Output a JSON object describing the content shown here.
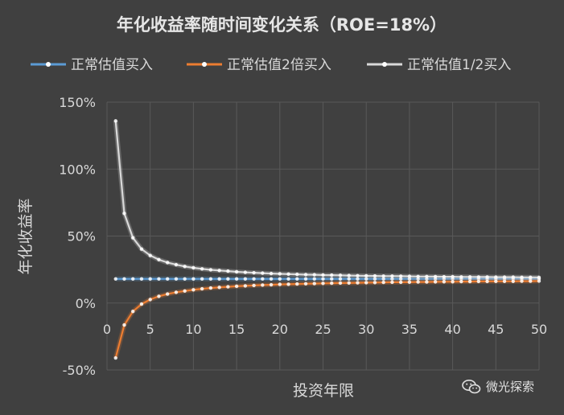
{
  "chart_data": {
    "type": "line",
    "title": "年化收益率随时间变化关系（ROE=18%）",
    "xlabel": "投资年限",
    "ylabel": "年化收益率",
    "xlim": [
      0,
      50
    ],
    "ylim": [
      -50,
      150
    ],
    "x_ticks": [
      0,
      5,
      10,
      15,
      20,
      25,
      30,
      35,
      40,
      45,
      50
    ],
    "y_ticks": [
      -50,
      0,
      50,
      100,
      150
    ],
    "y_tick_labels": [
      "-50%",
      "0%",
      "50%",
      "100%",
      "150%"
    ],
    "grid": true,
    "legend_position": "top",
    "x": [
      1,
      2,
      3,
      4,
      5,
      6,
      7,
      8,
      9,
      10,
      11,
      12,
      13,
      14,
      15,
      16,
      17,
      18,
      19,
      20,
      21,
      22,
      23,
      24,
      25,
      26,
      27,
      28,
      29,
      30,
      31,
      32,
      33,
      34,
      35,
      36,
      37,
      38,
      39,
      40,
      41,
      42,
      43,
      44,
      45,
      46,
      47,
      48,
      49,
      50
    ],
    "series": [
      {
        "name": "正常估值买入",
        "color": "#5b9bd5",
        "values": [
          18,
          18,
          18,
          18,
          18,
          18,
          18,
          18,
          18,
          18,
          18,
          18,
          18,
          18,
          18,
          18,
          18,
          18,
          18,
          18,
          18,
          18,
          18,
          18,
          18,
          18,
          18,
          18,
          18,
          18,
          18,
          18,
          18,
          18,
          18,
          18,
          18,
          18,
          18,
          18,
          18,
          18,
          18,
          18,
          18,
          18,
          18,
          18,
          18,
          18
        ]
      },
      {
        "name": "正常估值2倍买入",
        "color": "#ed7d31",
        "values": [
          -41,
          -16.4,
          -6.3,
          -0.8,
          2.6,
          5.0,
          6.7,
          8.0,
          9.0,
          9.9,
          10.6,
          11.2,
          11.7,
          12.1,
          12.5,
          12.8,
          13.1,
          13.4,
          13.6,
          13.9,
          14.0,
          14.2,
          14.4,
          14.5,
          14.7,
          14.8,
          14.9,
          15.0,
          15.1,
          15.2,
          15.3,
          15.4,
          15.5,
          15.5,
          15.6,
          15.7,
          15.7,
          15.8,
          15.9,
          15.9,
          16.0,
          16.0,
          16.1,
          16.1,
          16.2,
          16.2,
          16.2,
          16.3,
          16.3,
          16.4
        ]
      },
      {
        "name": "正常估值1/2买入",
        "color": "#d9d9d9",
        "values": [
          136,
          66.9,
          48.7,
          40.3,
          35.5,
          32.4,
          30.2,
          28.6,
          27.3,
          26.3,
          25.5,
          24.8,
          24.3,
          23.8,
          23.3,
          22.9,
          22.6,
          22.3,
          22.0,
          21.8,
          21.6,
          21.4,
          21.2,
          21.1,
          20.9,
          20.8,
          20.7,
          20.5,
          20.4,
          20.3,
          20.2,
          20.1,
          20.1,
          20.0,
          19.9,
          19.8,
          19.8,
          19.7,
          19.6,
          19.6,
          19.5,
          19.5,
          19.4,
          19.4,
          19.3,
          19.3,
          19.3,
          19.2,
          19.2,
          19.1
        ]
      }
    ]
  },
  "watermark": {
    "icon": "wechat-icon",
    "text": "微光探索"
  }
}
